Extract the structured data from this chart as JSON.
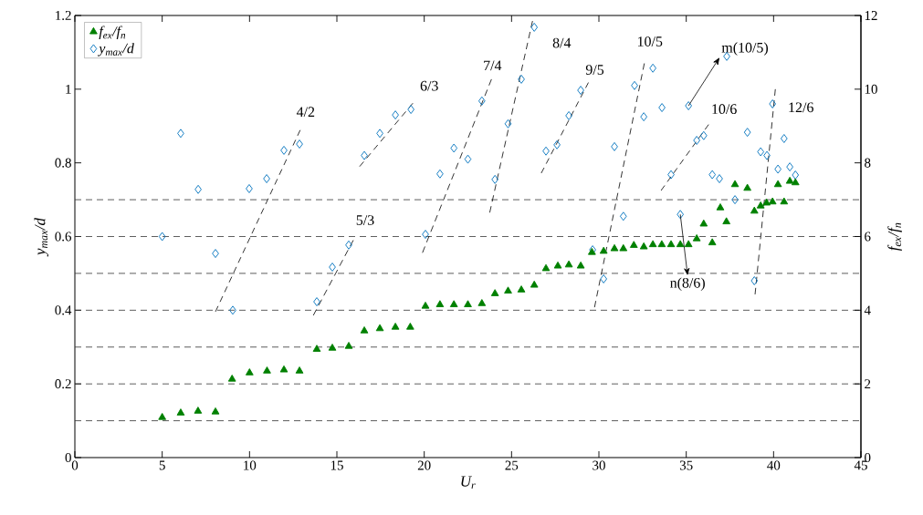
{
  "chart_data": {
    "type": "scatter",
    "xlabel": "U$_{r}$",
    "ylabel": "y$_{max}$/d",
    "y2label": "f$_{ex}$/f$_{n}$",
    "xlim": [
      0,
      45
    ],
    "xticks": [
      0,
      5,
      10,
      15,
      20,
      25,
      30,
      35,
      40,
      45
    ],
    "ylim": [
      0,
      1.2
    ],
    "yticks": [
      0,
      0.2,
      0.4,
      0.6,
      0.8,
      1,
      1.2
    ],
    "y2lim": [
      0,
      12
    ],
    "y2ticks": [
      0,
      2,
      4,
      6,
      8,
      10,
      12
    ],
    "legend": "top left",
    "series": [
      {
        "name": "f$_{ex}$/f$_{n}$",
        "axis": "y2",
        "marker": "triangle",
        "color": "#008000",
        "x": [
          5,
          6.06,
          7.05,
          8.05,
          9,
          10,
          11,
          11.97,
          12.86,
          13.85,
          14.74,
          15.68,
          16.57,
          17.46,
          18.35,
          19.2,
          20.07,
          20.9,
          21.7,
          22.5,
          23.3,
          24.05,
          24.8,
          25.56,
          26.3,
          26.97,
          27.65,
          28.28,
          28.96,
          29.6,
          30.27,
          30.89,
          31.4,
          32.0,
          32.57,
          33.09,
          33.6,
          34.13,
          34.66,
          35.13,
          35.6,
          36.0,
          36.49,
          36.95,
          37.3,
          37.79,
          38.5,
          38.9,
          39.26,
          39.6,
          39.94,
          40.25,
          40.6,
          40.93,
          41.25
        ],
        "values": [
          1.09,
          1.21,
          1.26,
          1.24,
          2.13,
          2.3,
          2.35,
          2.38,
          2.35,
          2.94,
          2.97,
          3.02,
          3.44,
          3.5,
          3.54,
          3.54,
          4.11,
          4.15,
          4.15,
          4.15,
          4.18,
          4.45,
          4.52,
          4.55,
          4.68,
          5.13,
          5.2,
          5.23,
          5.2,
          5.57,
          5.6,
          5.67,
          5.67,
          5.76,
          5.72,
          5.78,
          5.78,
          5.78,
          5.78,
          5.78,
          5.94,
          6.34,
          5.83,
          6.78,
          6.4,
          7.41,
          7.31,
          6.69,
          6.83,
          6.91,
          6.94,
          7.41,
          6.94,
          7.5,
          7.46
        ]
      },
      {
        "name": "y$_{max}$/d",
        "marker": "diamond",
        "color": "#0072bd",
        "x": [
          5,
          6.06,
          7.06,
          8.05,
          9.04,
          9.98,
          10.98,
          11.97,
          12.86,
          13.85,
          14.74,
          15.68,
          16.57,
          17.46,
          18.35,
          19.24,
          20.07,
          20.9,
          21.7,
          22.5,
          23.3,
          24.05,
          24.8,
          25.56,
          26.3,
          26.97,
          27.6,
          28.28,
          28.96,
          29.64,
          30.27,
          30.89,
          31.4,
          32.04,
          32.57,
          33.09,
          33.61,
          34.13,
          34.66,
          35.13,
          35.6,
          36.0,
          36.49,
          36.9,
          37.32,
          37.79,
          38.5,
          38.9,
          39.26,
          39.62,
          39.94,
          40.25,
          40.6,
          40.93,
          41.25
        ],
        "values": [
          0.6,
          0.88,
          0.728,
          0.554,
          0.4,
          0.73,
          0.757,
          0.834,
          0.851,
          0.423,
          0.517,
          0.577,
          0.82,
          0.88,
          0.93,
          0.945,
          0.606,
          0.77,
          0.84,
          0.81,
          0.968,
          0.755,
          0.906,
          1.027,
          1.168,
          0.832,
          0.849,
          0.928,
          0.997,
          0.564,
          0.485,
          0.844,
          0.655,
          1.01,
          0.925,
          1.057,
          0.95,
          0.768,
          0.66,
          0.955,
          0.861,
          0.874,
          0.768,
          0.757,
          1.089,
          0.7,
          0.883,
          0.48,
          0.83,
          0.82,
          0.96,
          0.783,
          0.866,
          0.789,
          0.767
        ]
      },
      {
        "type": "line",
        "line_style": "dashed",
        "marker": "none",
        "color": "#000000",
        "x": [
          8.05,
          12.9
        ],
        "values": [
          0.396,
          0.889
        ]
      },
      {
        "type": "line",
        "line_style": "dashed",
        "marker": "none",
        "color": "#000000",
        "x": [
          13.65,
          15.94
        ],
        "values": [
          0.386,
          0.59
        ]
      },
      {
        "type": "line",
        "line_style": "dashed",
        "marker": "none",
        "color": "#000000",
        "x": [
          16.3,
          19.35
        ],
        "values": [
          0.79,
          0.962
        ]
      },
      {
        "type": "line",
        "line_style": "dashed",
        "marker": "none",
        "color": "#000000",
        "x": [
          19.9,
          23.85
        ],
        "values": [
          0.556,
          1.027
        ]
      },
      {
        "type": "line",
        "line_style": "dashed",
        "marker": "none",
        "color": "#000000",
        "x": [
          23.75,
          26.2
        ],
        "values": [
          0.665,
          1.185
        ]
      },
      {
        "type": "line",
        "line_style": "dashed",
        "marker": "none",
        "color": "#000000",
        "x": [
          26.7,
          29.4
        ],
        "values": [
          0.772,
          1.018
        ]
      },
      {
        "type": "line",
        "line_style": "dashed",
        "marker": "none",
        "color": "#000000",
        "x": [
          29.75,
          32.6
        ],
        "values": [
          0.408,
          1.07
        ]
      },
      {
        "type": "line",
        "line_style": "dashed",
        "marker": "none",
        "color": "#000000",
        "x": [
          33.56,
          36.28
        ],
        "values": [
          0.725,
          0.904
        ]
      },
      {
        "type": "line",
        "line_style": "dashed",
        "marker": "none",
        "color": "#000000",
        "x": [
          38.94,
          40.1
        ],
        "values": [
          0.443,
          1.0
        ]
      }
    ],
    "ref_lines": [
      {
        "axis": "y",
        "value": 0.1,
        "color": "#333333",
        "line_style": "dashed"
      },
      {
        "axis": "y",
        "value": 0.2,
        "color": "#333333",
        "line_style": "dashed"
      },
      {
        "axis": "y",
        "value": 0.3,
        "color": "#333333",
        "line_style": "dashed"
      },
      {
        "axis": "y",
        "value": 0.4,
        "color": "#333333",
        "line_style": "dashed"
      },
      {
        "axis": "y",
        "value": 0.5,
        "color": "#333333",
        "line_style": "dashed"
      },
      {
        "axis": "y",
        "value": 0.6,
        "color": "#333333",
        "line_style": "dashed"
      },
      {
        "axis": "y",
        "value": 0.7,
        "color": "#333333",
        "line_style": "dashed"
      }
    ],
    "annotations": [
      "4/2",
      "5/3",
      "6/3",
      "7/4",
      "8/4",
      "9/5",
      "10/5",
      "10/6",
      "12/6",
      {
        "text": "m(10/5)",
        "x": 35.13,
        "y": 0.955
      },
      {
        "text": "n(8/6)",
        "x": 34.66,
        "y": 0.66
      }
    ]
  }
}
